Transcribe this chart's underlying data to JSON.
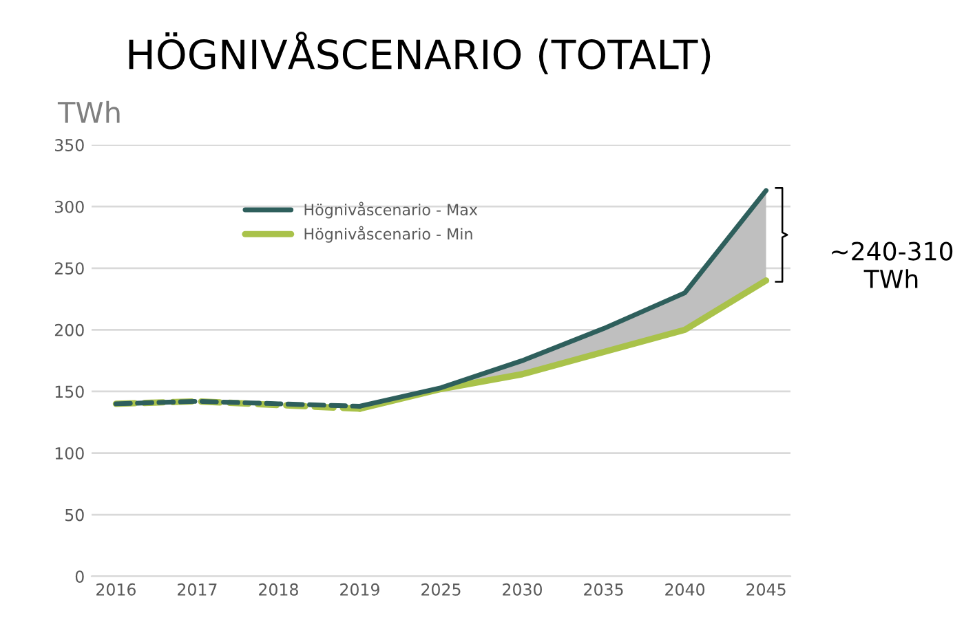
{
  "chart_data": {
    "type": "line",
    "title": "HÖGNIVÅSCENARIO (TOTALT)",
    "ylabel": "TWh",
    "categories": [
      "2016",
      "2017",
      "2018",
      "2019",
      "2025",
      "2030",
      "2035",
      "2040",
      "2045"
    ],
    "series": [
      {
        "color": "#2e5f5c",
        "line_style": "dashed",
        "values": [
          140,
          142,
          140,
          138,
          null,
          null,
          null,
          null,
          null
        ]
      },
      {
        "color": "#a9c24a",
        "line_style": "dashed",
        "values": [
          140,
          142,
          139,
          136,
          null,
          null,
          null,
          null,
          null
        ]
      },
      {
        "name": "Högnivåscenario - Max",
        "color": "#2e5f5c",
        "line_style": "solid",
        "values": [
          null,
          null,
          null,
          138,
          153,
          175,
          201,
          230,
          313
        ],
        "lower": [
          null,
          null,
          null,
          null,
          152,
          164,
          182,
          200,
          240
        ],
        "upper": [
          null,
          null,
          null,
          null,
          153,
          175,
          201,
          230,
          313
        ]
      },
      {
        "name": "Högnivåscenario - Min",
        "color": "#a9c24a",
        "line_style": "solid",
        "values": [
          null,
          null,
          null,
          136,
          152,
          164,
          182,
          200,
          240
        ]
      }
    ],
    "ylim": [
      0,
      350
    ],
    "yticks": [
      0,
      50,
      100,
      150,
      200,
      250,
      300,
      350
    ],
    "grid": "y",
    "legend": "top left",
    "annotations": [
      "~240-310\nTWh"
    ]
  }
}
